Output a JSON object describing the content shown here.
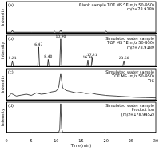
{
  "chart_data": [
    {
      "type": "line",
      "panel": "(a)",
      "annotation_lines": [
        "Blank sample TOF MS^E(m/z 50-950)",
        "m/z=78.9189"
      ],
      "ylabel": "Intensity",
      "color": "#000000",
      "grid": false,
      "tick_labels": false,
      "xlim": [
        0,
        30
      ],
      "ylim": [
        0,
        100
      ],
      "x": [
        0,
        1.0,
        1.2,
        1.4,
        5,
        9.5,
        9.7,
        9.9,
        10.7,
        10.9,
        11.1,
        15,
        19.8,
        20,
        20.2,
        25,
        30
      ],
      "values": [
        2,
        2,
        8,
        2,
        2,
        2,
        5,
        2,
        2,
        10,
        2,
        2,
        2,
        6,
        2,
        2,
        2
      ]
    },
    {
      "type": "line",
      "panel": "(b)",
      "annotation_lines": [
        "Simulated water sample",
        "TOF MS^E(m/z 50-950)",
        "m/z=78.9189"
      ],
      "ylabel": "Intensity",
      "color": "#000000",
      "grid": false,
      "tick_labels": false,
      "xlim": [
        0,
        30
      ],
      "ylim": [
        0,
        100
      ],
      "x": [
        0,
        1.0,
        1.21,
        1.4,
        6.3,
        6.47,
        6.65,
        8.25,
        8.4,
        8.55,
        10.7,
        10.9,
        11.1,
        16.2,
        16.36,
        16.5,
        17.05,
        17.21,
        17.4,
        23.4,
        23.6,
        23.8,
        30
      ],
      "values": [
        2,
        2,
        18,
        2,
        2,
        62,
        2,
        2,
        22,
        2,
        2,
        88,
        2,
        2,
        20,
        2,
        2,
        28,
        2,
        2,
        18,
        2,
        2
      ],
      "peak_labels": [
        {
          "x": 1.21,
          "text": "1.21"
        },
        {
          "x": 6.47,
          "text": "6.47"
        },
        {
          "x": 8.4,
          "text": "8.40"
        },
        {
          "x": 10.9,
          "text": "10.90"
        },
        {
          "x": 16.36,
          "text": "16.36"
        },
        {
          "x": 17.21,
          "text": "17.21"
        },
        {
          "x": 23.6,
          "text": "23.60"
        }
      ]
    },
    {
      "type": "line",
      "panel": "(c)",
      "annotation_lines": [
        "Simulated water sample",
        "TOF MS (m/z 50-950)",
        "TIC"
      ],
      "ylabel": "Intensity",
      "color": "#000000",
      "grid": false,
      "tick_labels": false,
      "xlim": [
        0,
        30
      ],
      "ylim": [
        0,
        100
      ],
      "x": [
        0,
        1,
        2,
        3,
        4,
        5,
        6,
        7,
        8,
        9,
        10,
        10.5,
        10.9,
        11.3,
        12,
        13,
        14,
        15,
        16,
        17,
        18,
        19,
        20,
        22,
        24,
        26,
        28,
        30
      ],
      "values": [
        5,
        20,
        12,
        15,
        18,
        14,
        22,
        18,
        20,
        25,
        28,
        40,
        85,
        38,
        30,
        26,
        22,
        24,
        20,
        22,
        18,
        16,
        14,
        12,
        10,
        8,
        7,
        6
      ]
    },
    {
      "type": "line",
      "panel": "(d)",
      "annotation_lines": [
        "Simulated water sample",
        "Product Ion",
        "(m/z=178.9452)"
      ],
      "ylabel": "Intensity",
      "xlabel": "Time(min)",
      "color": "#000000",
      "grid": false,
      "tick_labels": "x",
      "xlim": [
        0,
        30
      ],
      "ylim": [
        0,
        100
      ],
      "xticks": [
        0,
        5,
        10,
        15,
        20,
        25,
        30
      ],
      "x": [
        0,
        5,
        10.5,
        10.7,
        10.9,
        11.1,
        11.3,
        15,
        20,
        25,
        30
      ],
      "values": [
        1,
        1,
        1,
        10,
        95,
        12,
        1,
        1,
        1,
        1,
        1
      ]
    }
  ]
}
